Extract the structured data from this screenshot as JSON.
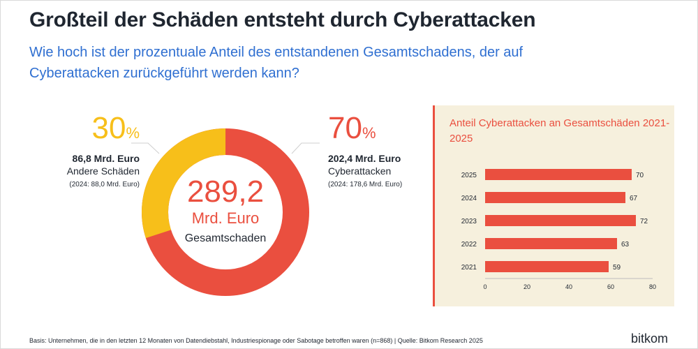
{
  "header": {
    "title": "Großteil der Schäden entsteht durch Cyberattacken",
    "subtitle": "Wie hoch ist der prozentuale Anteil des entstandenen Gesamtschadens, der auf Cyberattacken zurückgeführt werden kann?"
  },
  "colors": {
    "red": "#ea4f3f",
    "yellow": "#f7bf1a",
    "blue": "#2f6fd1",
    "panel_bg": "#f6f0dd"
  },
  "donut": {
    "center_value": "289,2",
    "center_unit": "Mrd. Euro",
    "center_label": "Gesamtschaden",
    "segments": [
      {
        "pct_number": "30",
        "pct_symbol": "%",
        "fraction": 0.3,
        "amount": "86,8 Mrd. Euro",
        "label": "Andere Schäden",
        "previous": "(2024: 88,0 Mrd. Euro)"
      },
      {
        "pct_number": "70",
        "pct_symbol": "%",
        "fraction": 0.7,
        "amount": "202,4 Mrd. Euro",
        "label": "Cyberattacken",
        "previous": "(2024: 178,6 Mrd. Euro)"
      }
    ]
  },
  "chart_data": [
    {
      "type": "pie",
      "title": "289,2 Mrd. Euro Gesamtschaden",
      "categories": [
        "Andere Schäden",
        "Cyberattacken"
      ],
      "values": [
        30,
        70
      ],
      "amounts_mrd_eur": [
        86.8,
        202.4
      ]
    },
    {
      "type": "bar",
      "orientation": "horizontal",
      "title": "Anteil Cyberattacken an Gesamtschäden 2021-2025",
      "categories": [
        "2025",
        "2024",
        "2023",
        "2022",
        "2021"
      ],
      "values": [
        70,
        67,
        72,
        63,
        59
      ],
      "xlim": [
        0,
        80
      ],
      "xticks": [
        0,
        20,
        40,
        60,
        80
      ]
    }
  ],
  "footer": {
    "note": "Basis: Unternehmen, die in den letzten 12 Monaten von Datendiebstahl, Industriespionage oder Sabotage betroffen waren (n=868) | Quelle: Bitkom Research 2025",
    "brand": "bitkom"
  }
}
